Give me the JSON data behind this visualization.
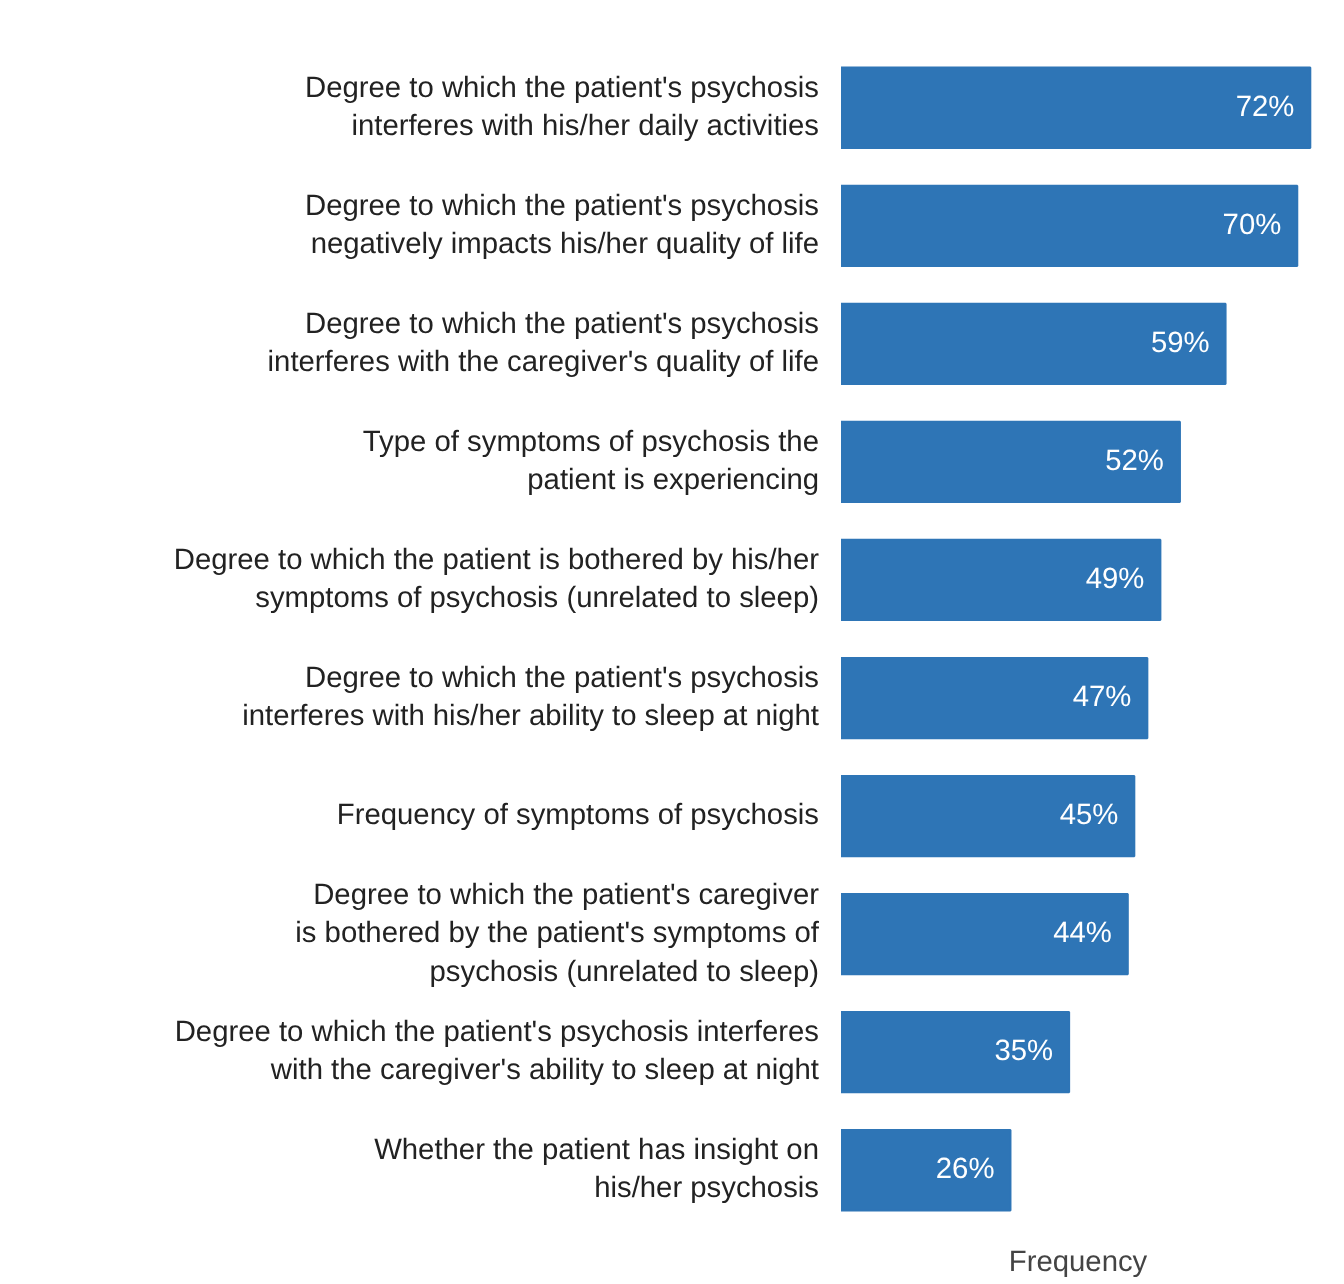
{
  "chart_data": {
    "type": "bar",
    "orientation": "horizontal",
    "xlabel": "Frequency",
    "categories": [
      "Degree to which the patient's psychosis\ninterferes with his/her daily activities",
      "Degree to which the patient's psychosis\nnegatively impacts his/her quality of life",
      "Degree to which the patient's psychosis\ninterferes with the caregiver's quality of life",
      "Type of symptoms of psychosis the\npatient is experiencing",
      "Degree to which the patient is bothered by his/her\nsymptoms of psychosis (unrelated to sleep)",
      "Degree to which the patient's psychosis\ninterferes with his/her ability to sleep at night",
      "Frequency of symptoms of psychosis",
      "Degree to which the patient's caregiver\nis bothered by the patient's symptoms of\npsychosis (unrelated to sleep)",
      "Degree to which the patient's psychosis interferes\nwith the caregiver's ability to sleep at night",
      "Whether the patient has insight on\nhis/her psychosis"
    ],
    "values": [
      72,
      70,
      59,
      52,
      49,
      47,
      45,
      44,
      35,
      26
    ],
    "value_labels": [
      "72%",
      "70%",
      "59%",
      "52%",
      "49%",
      "47%",
      "45%",
      "44%",
      "35%",
      "26%"
    ],
    "color": "#2e75b6",
    "tick_labels": "y"
  }
}
